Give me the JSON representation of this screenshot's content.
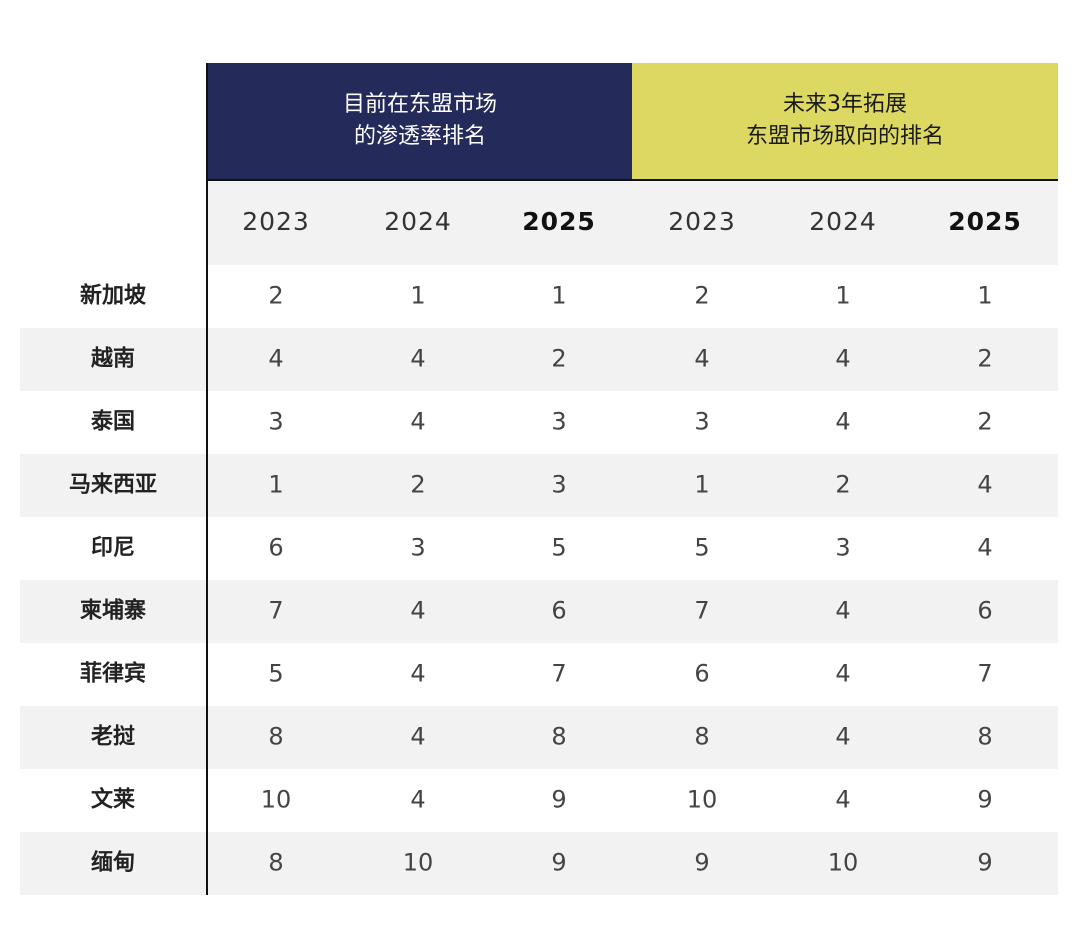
{
  "header": {
    "groups": [
      {
        "lines": [
          "目前在东盟市场",
          "的渗透率排名"
        ]
      },
      {
        "lines": [
          "未来3年拓展",
          "东盟市场取向的排名"
        ]
      }
    ],
    "years": [
      "2023",
      "2024",
      "2025",
      "2023",
      "2024",
      "2025"
    ]
  },
  "table": {
    "rows": [
      {
        "label": "新加坡",
        "values": [
          2,
          1,
          1,
          2,
          1,
          1
        ]
      },
      {
        "label": "越南",
        "values": [
          4,
          4,
          2,
          4,
          4,
          2
        ]
      },
      {
        "label": "泰国",
        "values": [
          3,
          4,
          3,
          3,
          4,
          2
        ]
      },
      {
        "label": "马来西亚",
        "values": [
          1,
          2,
          3,
          1,
          2,
          4
        ]
      },
      {
        "label": "印尼",
        "values": [
          6,
          3,
          5,
          5,
          3,
          4
        ]
      },
      {
        "label": "柬埔寨",
        "values": [
          7,
          4,
          6,
          7,
          4,
          6
        ]
      },
      {
        "label": "菲律宾",
        "values": [
          5,
          4,
          7,
          6,
          4,
          7
        ]
      },
      {
        "label": "老挝",
        "values": [
          8,
          4,
          8,
          8,
          4,
          8
        ]
      },
      {
        "label": "文莱",
        "values": [
          10,
          4,
          9,
          10,
          4,
          9
        ]
      },
      {
        "label": "缅甸",
        "values": [
          8,
          10,
          9,
          9,
          10,
          9
        ]
      }
    ]
  }
}
